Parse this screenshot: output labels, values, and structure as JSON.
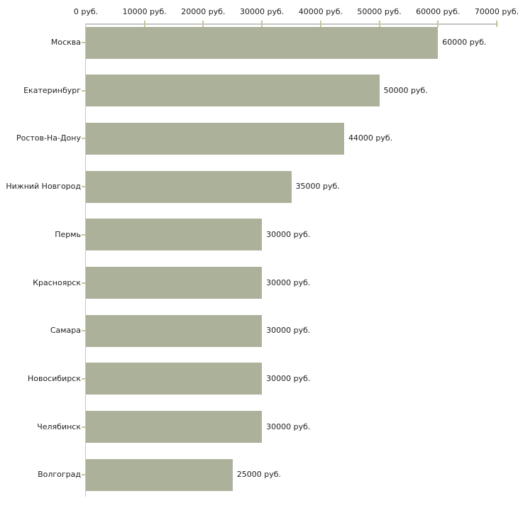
{
  "chart_data": {
    "type": "bar",
    "orientation": "horizontal",
    "title": "",
    "xlabel": "",
    "ylabel": "",
    "unit": "руб.",
    "grid": false,
    "legend": false,
    "xlim": [
      0,
      70000
    ],
    "x_ticks": [
      0,
      10000,
      20000,
      30000,
      40000,
      50000,
      60000,
      70000
    ],
    "x_tick_labels": [
      "0 руб.",
      "10000 руб.",
      "20000 руб.",
      "30000 руб.",
      "40000 руб.",
      "50000 руб.",
      "60000 руб.",
      "70000 руб."
    ],
    "categories": [
      "Москва",
      "Екатеринбург",
      "Ростов-На-Дону",
      "Нижний Новгород",
      "Пермь",
      "Красноярск",
      "Самара",
      "Новосибирск",
      "Челябинск",
      "Волгоград"
    ],
    "values": [
      60000,
      50000,
      44000,
      35000,
      30000,
      30000,
      30000,
      30000,
      30000,
      25000
    ],
    "value_labels": [
      "60000 руб.",
      "50000 руб.",
      "44000 руб.",
      "35000 руб.",
      "30000 руб.",
      "30000 руб.",
      "30000 руб.",
      "30000 руб.",
      "30000 руб.",
      "25000 руб."
    ],
    "colors": {
      "bar_fill": "#abb299",
      "axis_line": "#c4c4c4",
      "tick_mark": "#c6c69c",
      "text": "#222222",
      "background": "#ffffff"
    }
  }
}
